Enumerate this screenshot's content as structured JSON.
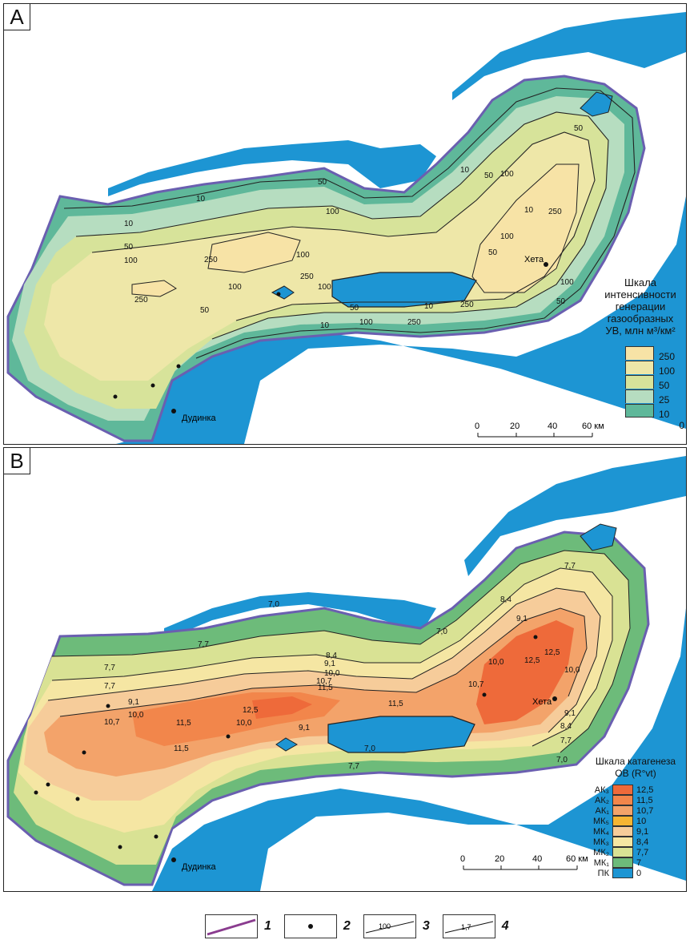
{
  "panel_a": {
    "letter": "A",
    "legend_title_lines": [
      "Шкала",
      "интенсивности",
      "генерации",
      "газообразных",
      "УВ, млн м³/км²"
    ],
    "legend": [
      {
        "value": "250",
        "color": "#f7e3a6"
      },
      {
        "value": "100",
        "color": "#eee7a8"
      },
      {
        "value": "50",
        "color": "#d7e39a"
      },
      {
        "value": "25",
        "color": "#b6ddc0"
      },
      {
        "value": "10",
        "color": "#5fb89a"
      },
      {
        "value": "0",
        "color": "#1d95d3"
      }
    ],
    "scale": {
      "ticks": [
        "0",
        "20",
        "40",
        "60 км"
      ]
    },
    "cities": {
      "north": "Хета",
      "south": "Дудинка"
    },
    "contour_labels": [
      "10",
      "10",
      "50",
      "50",
      "100",
      "100",
      "250",
      "250",
      "250",
      "100",
      "10",
      "50",
      "100",
      "250",
      "50",
      "10",
      "50",
      "100",
      "100",
      "50",
      "100",
      "250",
      "100",
      "50",
      "10",
      "100",
      "50",
      "10",
      "250"
    ]
  },
  "panel_b": {
    "letter": "B",
    "legend_title_lines": [
      "Шкала катагенеза",
      "ОВ (R°vt)"
    ],
    "legend": [
      {
        "grade": "АК₃",
        "value": "12,5",
        "color": "#ee6a3a"
      },
      {
        "grade": "АК₂",
        "value": "11,5",
        "color": "#f2864b"
      },
      {
        "grade": "АК₁",
        "value": "10,7",
        "color": "#f3a36a"
      },
      {
        "grade": "МК₅",
        "value": "10",
        "color": "#f6b533"
      },
      {
        "grade": "МК₄",
        "value": "9,1",
        "color": "#f6cc9a"
      },
      {
        "grade": "МК₃",
        "value": "8,4",
        "color": "#f5e6a3"
      },
      {
        "grade": "МК₂",
        "value": "7,7",
        "color": "#d9e294"
      },
      {
        "grade": "МК₁",
        "value": "7",
        "color": "#6dbb7a"
      },
      {
        "grade": "ПК",
        "value": "0",
        "color": "#1d95d3"
      }
    ],
    "scale": {
      "ticks": [
        "0",
        "20",
        "40",
        "60 км"
      ]
    },
    "cities": {
      "north": "Хета",
      "south": "Дудинка"
    },
    "contour_labels": [
      "7,0",
      "7,7",
      "7,7",
      "8,4",
      "9,1",
      "10,0",
      "10,7",
      "11,5",
      "12,5",
      "10,7",
      "11,5",
      "10,0",
      "9,1",
      "7,7",
      "7,0",
      "9,1",
      "7,0",
      "7,7",
      "8,4",
      "9,1",
      "10,0",
      "10,7",
      "11,5",
      "12,5",
      "7,7",
      "8,4",
      "9,1",
      "10,0",
      "7,0",
      "7,7",
      "12,5",
      "11,5",
      "10,0"
    ]
  },
  "bottom_legend": [
    {
      "number": "1"
    },
    {
      "number": "2"
    },
    {
      "number": "3",
      "sample": "100"
    },
    {
      "number": "4",
      "sample": "1,7"
    }
  ]
}
